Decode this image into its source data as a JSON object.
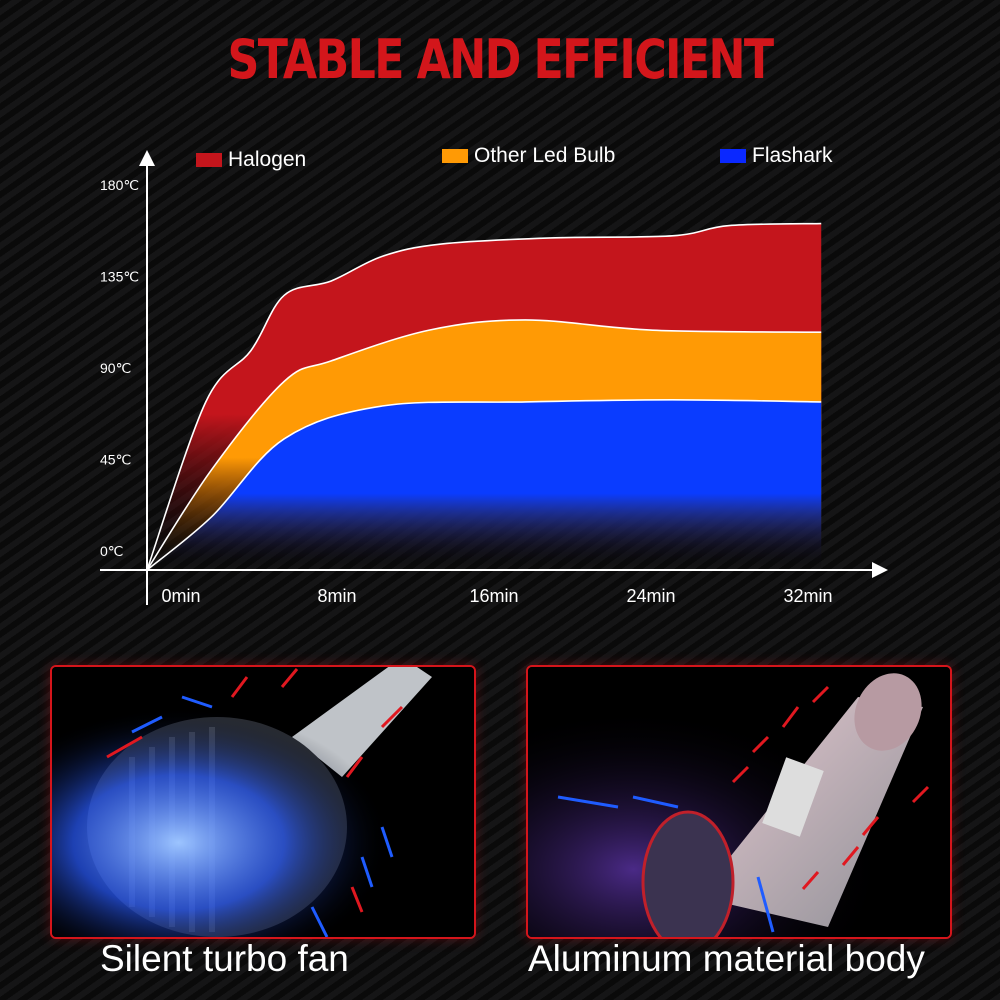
{
  "title": "STABLE AND EFFICIENT",
  "chart_data": {
    "type": "area",
    "title": "STABLE AND EFFICIENT",
    "xlabel": "",
    "ylabel": "",
    "x_ticks": [
      "0min",
      "8min",
      "16min",
      "24min",
      "32min"
    ],
    "y_ticks": [
      "0℃",
      "45℃",
      "90℃",
      "135℃",
      "180℃"
    ],
    "ylim": [
      0,
      180
    ],
    "xlim": [
      0,
      34
    ],
    "legend_position": "top",
    "grid": false,
    "series": [
      {
        "name": "Halogen",
        "color": "#c4151c",
        "x": [
          0,
          3,
          5.3,
          7,
          9.4,
          12,
          15,
          20.6,
          26.8,
          29.7,
          34.4
        ],
        "y": [
          0,
          82,
          107,
          134,
          141,
          153,
          159,
          162,
          163,
          168,
          169
        ]
      },
      {
        "name": "Other Led Bulb",
        "color": "#ff9a05",
        "x": [
          0,
          3.3,
          7,
          9.4,
          14.4,
          19.3,
          25.8,
          34.4
        ],
        "y": [
          0,
          49,
          92,
          102,
          117,
          122,
          117,
          116
        ]
      },
      {
        "name": "Flashark",
        "color": "#0a3cff",
        "x": [
          0,
          3.3,
          7,
          12,
          19.3,
          26.8,
          34.4
        ],
        "y": [
          0,
          26,
          64,
          80,
          82,
          83,
          82
        ]
      }
    ]
  },
  "panels": [
    {
      "caption": "Silent turbo fan"
    },
    {
      "caption": "Aluminum material body"
    }
  ]
}
